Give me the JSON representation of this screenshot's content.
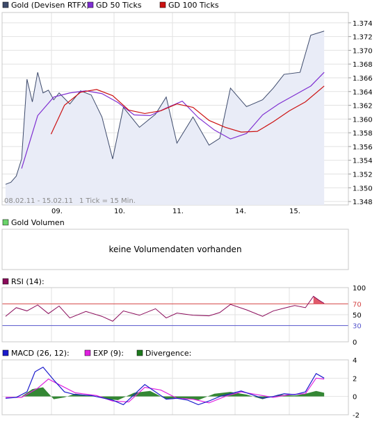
{
  "price_panel": {
    "legend": [
      {
        "label": "Gold (Devisen RTFX)",
        "color": "#3d4a6b"
      },
      {
        "label": "GD 50 Ticks",
        "color": "#7f2fd1"
      },
      {
        "label": "GD 100 Ticks",
        "color": "#cc1111"
      }
    ],
    "date_range": "08.02.11 - 15.02.11",
    "tick_info": "1 Tick = 15 Min.",
    "x_labels": [
      "09.",
      "10.",
      "11.",
      "14.",
      "15."
    ],
    "y_labels": [
      "1.374",
      "1.372",
      "1.370",
      "1.368",
      "1.366",
      "1.364",
      "1.362",
      "1.360",
      "1.358",
      "1.356",
      "1.354",
      "1.352",
      "1.350",
      "1.348"
    ]
  },
  "volume_panel": {
    "legend": {
      "label": "Gold Volumen",
      "color": "#6ad36a"
    },
    "message": "keine Volumendaten vorhanden"
  },
  "rsi_panel": {
    "legend": {
      "label": "RSI (14):",
      "color": "#8a0a5a"
    },
    "y_labels": [
      "100",
      "70",
      "50",
      "30",
      "0"
    ],
    "upper_level": 70,
    "lower_level": 30,
    "upper_color": "#d44444",
    "lower_color": "#5555cc"
  },
  "macd_panel": {
    "legend": [
      {
        "label": "MACD (26, 12):",
        "color": "#1a1acc"
      },
      {
        "label": "EXP (9):",
        "color": "#e020e0"
      },
      {
        "label": "Divergence:",
        "color": "#1e7a1e"
      }
    ],
    "y_labels": [
      "4",
      "2",
      "0",
      "-2"
    ]
  },
  "chart_data": [
    {
      "type": "line",
      "title": "Gold (Devisen RTFX)",
      "x_range": [
        "08.02.11",
        "15.02.11"
      ],
      "ylim": [
        1.3475,
        1.3755
      ],
      "series": [
        {
          "name": "Gold (Devisen RTFX)",
          "x": [
            0.0,
            0.1,
            0.2,
            0.3,
            0.4,
            0.5,
            0.6,
            0.7,
            0.8,
            0.9,
            1.0,
            1.2,
            1.4,
            1.6,
            1.8,
            2.0,
            2.2,
            2.5,
            2.8,
            3.0,
            3.2,
            3.5,
            3.8,
            4.0,
            4.2,
            4.5,
            4.8,
            5.0,
            5.2,
            5.5,
            5.7,
            5.95
          ],
          "y": [
            1.3505,
            1.3508,
            1.3517,
            1.3542,
            1.3658,
            1.3625,
            1.3668,
            1.3638,
            1.3642,
            1.3628,
            1.3638,
            1.3622,
            1.3641,
            1.3635,
            1.3603,
            1.3542,
            1.3617,
            1.3588,
            1.3607,
            1.3632,
            1.3565,
            1.3603,
            1.3562,
            1.3572,
            1.3645,
            1.3618,
            1.3628,
            1.3645,
            1.3665,
            1.3668,
            1.3722,
            1.3728
          ]
        },
        {
          "name": "GD 50 Ticks",
          "x": [
            0.3,
            0.6,
            0.9,
            1.2,
            1.5,
            1.8,
            2.1,
            2.4,
            2.7,
            3.0,
            3.3,
            3.6,
            3.9,
            4.2,
            4.5,
            4.8,
            5.1,
            5.4,
            5.7,
            5.95
          ],
          "y": [
            1.3528,
            1.3605,
            1.3632,
            1.3638,
            1.3641,
            1.3637,
            1.3624,
            1.3606,
            1.3605,
            1.3616,
            1.3626,
            1.3602,
            1.3584,
            1.3571,
            1.3579,
            1.3606,
            1.3622,
            1.3635,
            1.3648,
            1.3668
          ]
        },
        {
          "name": "GD 100 Ticks",
          "x": [
            0.85,
            1.1,
            1.4,
            1.7,
            2.0,
            2.3,
            2.6,
            2.9,
            3.2,
            3.5,
            3.8,
            4.1,
            4.4,
            4.7,
            5.0,
            5.3,
            5.6,
            5.95
          ],
          "y": [
            1.3578,
            1.362,
            1.3639,
            1.3643,
            1.3634,
            1.3613,
            1.3608,
            1.3612,
            1.3622,
            1.3617,
            1.3598,
            1.3588,
            1.3581,
            1.3582,
            1.3596,
            1.3612,
            1.3625,
            1.3648
          ]
        }
      ]
    },
    {
      "type": "line",
      "title": "RSI (14):",
      "ylim": [
        0,
        100
      ],
      "series": [
        {
          "name": "RSI (14):",
          "x": [
            0.0,
            0.2,
            0.4,
            0.6,
            0.8,
            1.0,
            1.2,
            1.5,
            1.8,
            2.0,
            2.2,
            2.5,
            2.8,
            3.0,
            3.2,
            3.5,
            3.8,
            4.0,
            4.2,
            4.5,
            4.8,
            5.0,
            5.2,
            5.4,
            5.6,
            5.75,
            5.85,
            5.95
          ],
          "y": [
            47,
            63,
            57,
            68,
            52,
            66,
            44,
            56,
            47,
            38,
            57,
            49,
            61,
            44,
            53,
            49,
            48,
            54,
            69,
            59,
            47,
            57,
            62,
            67,
            63,
            84,
            77,
            71
          ]
        }
      ]
    },
    {
      "type": "line",
      "title": "MACD (26, 12):",
      "ylim": [
        -2,
        4
      ],
      "series": [
        {
          "name": "MACD (26, 12):",
          "x": [
            0.0,
            0.2,
            0.4,
            0.55,
            0.7,
            0.9,
            1.1,
            1.3,
            1.6,
            2.0,
            2.2,
            2.4,
            2.6,
            2.8,
            3.0,
            3.2,
            3.4,
            3.6,
            3.8,
            4.0,
            4.2,
            4.4,
            4.6,
            4.8,
            5.0,
            5.2,
            5.4,
            5.6,
            5.8,
            5.95
          ],
          "y": [
            -0.2,
            -0.1,
            0.5,
            2.7,
            3.2,
            1.8,
            0.5,
            0.2,
            0.1,
            -0.4,
            -0.9,
            0.2,
            1.3,
            0.5,
            -0.3,
            -0.2,
            -0.4,
            -0.9,
            -0.5,
            0.0,
            0.3,
            0.6,
            0.2,
            -0.2,
            0.0,
            0.3,
            0.2,
            0.5,
            2.5,
            2.0
          ]
        },
        {
          "name": "EXP (9):",
          "x": [
            0.0,
            0.3,
            0.6,
            0.8,
            1.0,
            1.3,
            1.7,
            2.0,
            2.3,
            2.6,
            2.9,
            3.2,
            3.5,
            3.8,
            4.1,
            4.4,
            4.7,
            5.0,
            5.3,
            5.6,
            5.8,
            5.95
          ],
          "y": [
            -0.1,
            -0.1,
            0.9,
            1.9,
            1.3,
            0.4,
            0.1,
            -0.5,
            -0.6,
            1.0,
            0.7,
            -0.2,
            -0.3,
            -0.7,
            0.0,
            0.5,
            0.2,
            -0.1,
            0.2,
            0.3,
            2.0,
            1.9
          ]
        },
        {
          "name": "Divergence:",
          "x": [
            0.0,
            0.3,
            0.5,
            0.7,
            0.9,
            1.1,
            1.3,
            1.6,
            1.9,
            2.1,
            2.4,
            2.7,
            3.0,
            3.3,
            3.6,
            3.9,
            4.2,
            4.5,
            4.8,
            5.1,
            5.4,
            5.6,
            5.8,
            5.95
          ],
          "y": [
            0.0,
            0.0,
            0.8,
            1.0,
            -0.3,
            -0.1,
            0.3,
            0.1,
            -0.3,
            -0.4,
            0.4,
            0.6,
            -0.3,
            -0.2,
            -0.4,
            0.3,
            0.5,
            0.2,
            -0.3,
            0.2,
            0.1,
            0.3,
            0.6,
            0.4
          ]
        }
      ]
    }
  ]
}
